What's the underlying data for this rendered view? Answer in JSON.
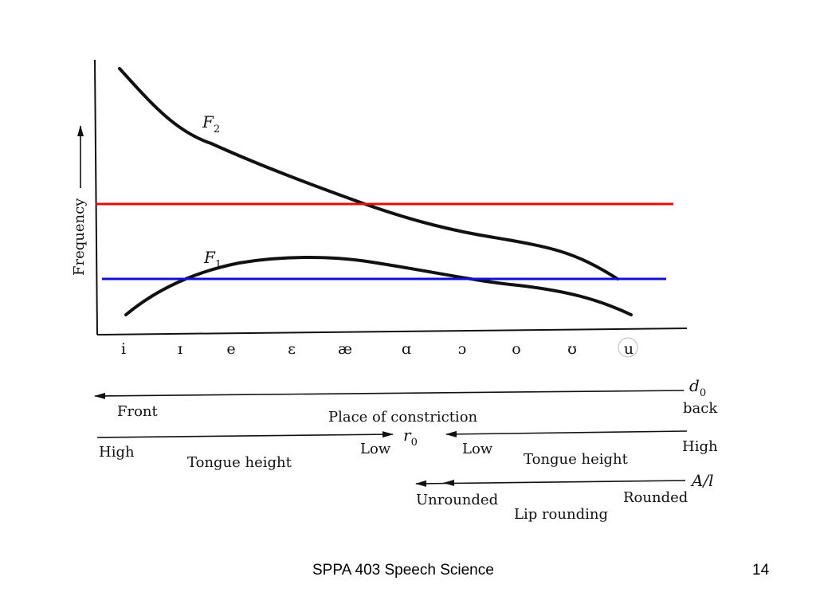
{
  "figure": {
    "y_axis_label": "Frequency",
    "curves": {
      "f2": "F",
      "f2_sub": "2",
      "f1": "F",
      "f1_sub": "1"
    },
    "vowels": [
      "i",
      "ɪ",
      "e",
      "ɛ",
      "æ",
      "ɑ",
      "ɔ",
      "o",
      "ʊ",
      "u"
    ],
    "constriction": {
      "param": "d",
      "param_sub": "0",
      "left": "Front",
      "center": "Place of constriction",
      "right": "back"
    },
    "tongue": {
      "param": "r",
      "param_sub": "0",
      "left_high": "High",
      "left_low": "Low",
      "left_label": "Tongue height",
      "right_low": "Low",
      "right_high": "High",
      "right_label": "Tongue height"
    },
    "lips": {
      "param": "A/l",
      "left": "Unrounded",
      "right": "Rounded",
      "label": "Lip rounding"
    },
    "colors": {
      "curve": "#111111",
      "red_line": "#e01010",
      "blue_line": "#1010d8"
    }
  },
  "footer": {
    "title": "SPPA 403 Speech Science",
    "page": "14"
  }
}
